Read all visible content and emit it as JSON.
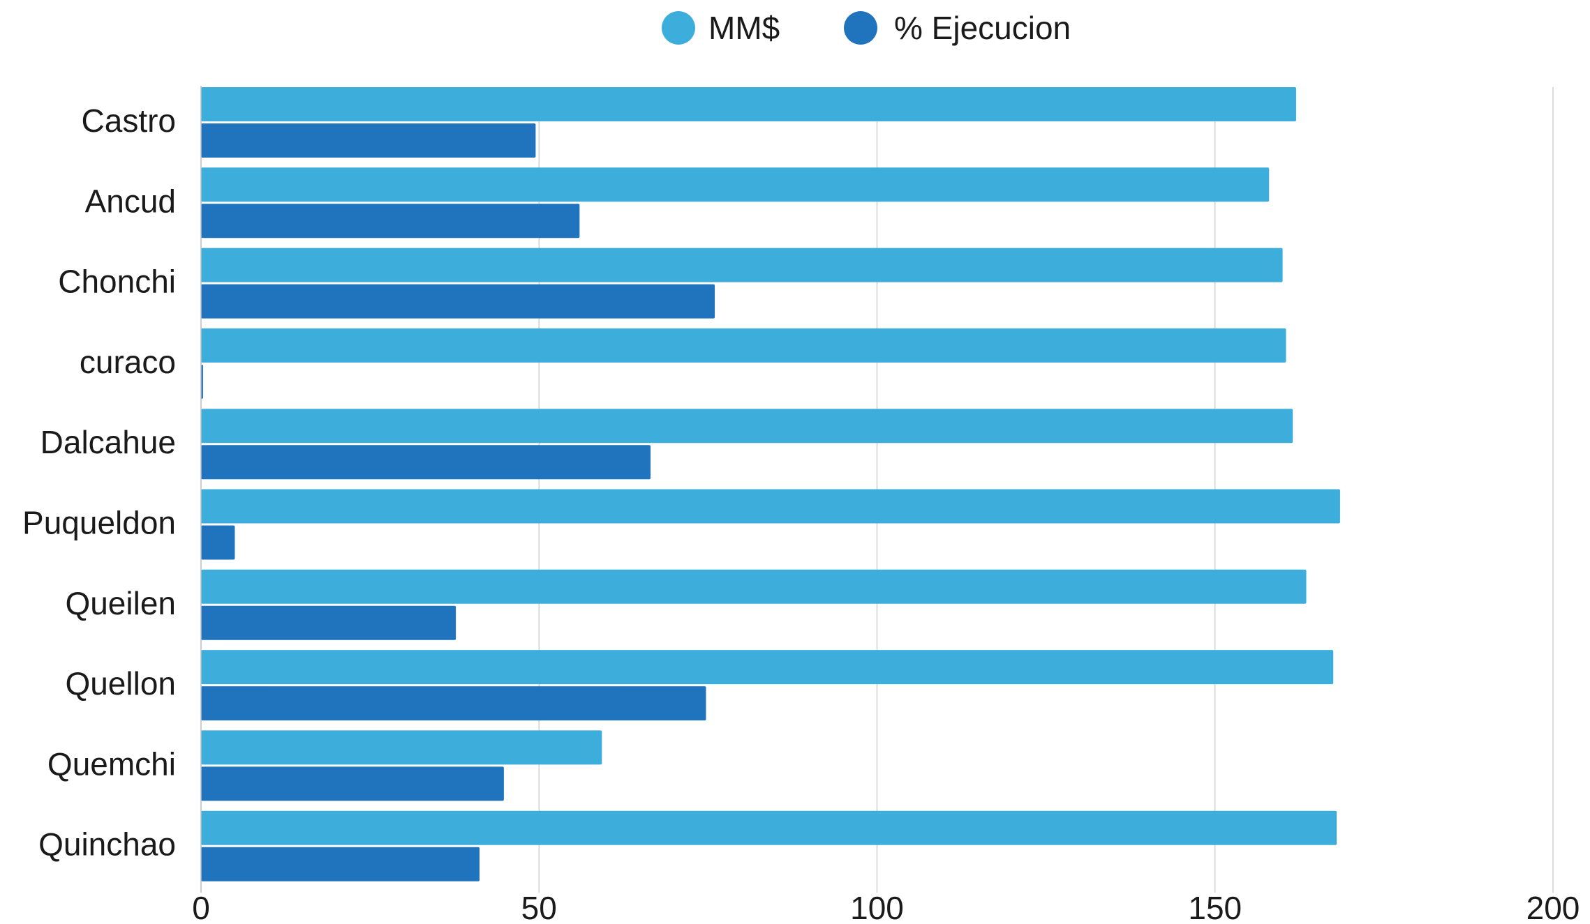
{
  "chart_data": {
    "type": "bar",
    "orientation": "horizontal",
    "categories": [
      "Castro",
      "Ancud",
      "Chonchi",
      "curaco",
      "Dalcahue",
      "Puqueldon",
      "Queilen",
      "Quellon",
      "Quemchi",
      "Quinchao"
    ],
    "series": [
      {
        "name": "MM$",
        "color": "#3daedb",
        "values": [
          162,
          158,
          160,
          160.5,
          161.5,
          168.5,
          163.5,
          167.5,
          59.3,
          168
        ]
      },
      {
        "name": "% Ejecucion",
        "color": "#1f74bd",
        "values": [
          49.5,
          56,
          76,
          0.3,
          66.5,
          5,
          37.7,
          74.7,
          44.8,
          41.2
        ]
      }
    ],
    "xlim": [
      0,
      200
    ],
    "xticks": [
      "0",
      "50",
      "100",
      "150",
      "200"
    ],
    "grid": "vertical",
    "legend": "top-center"
  }
}
